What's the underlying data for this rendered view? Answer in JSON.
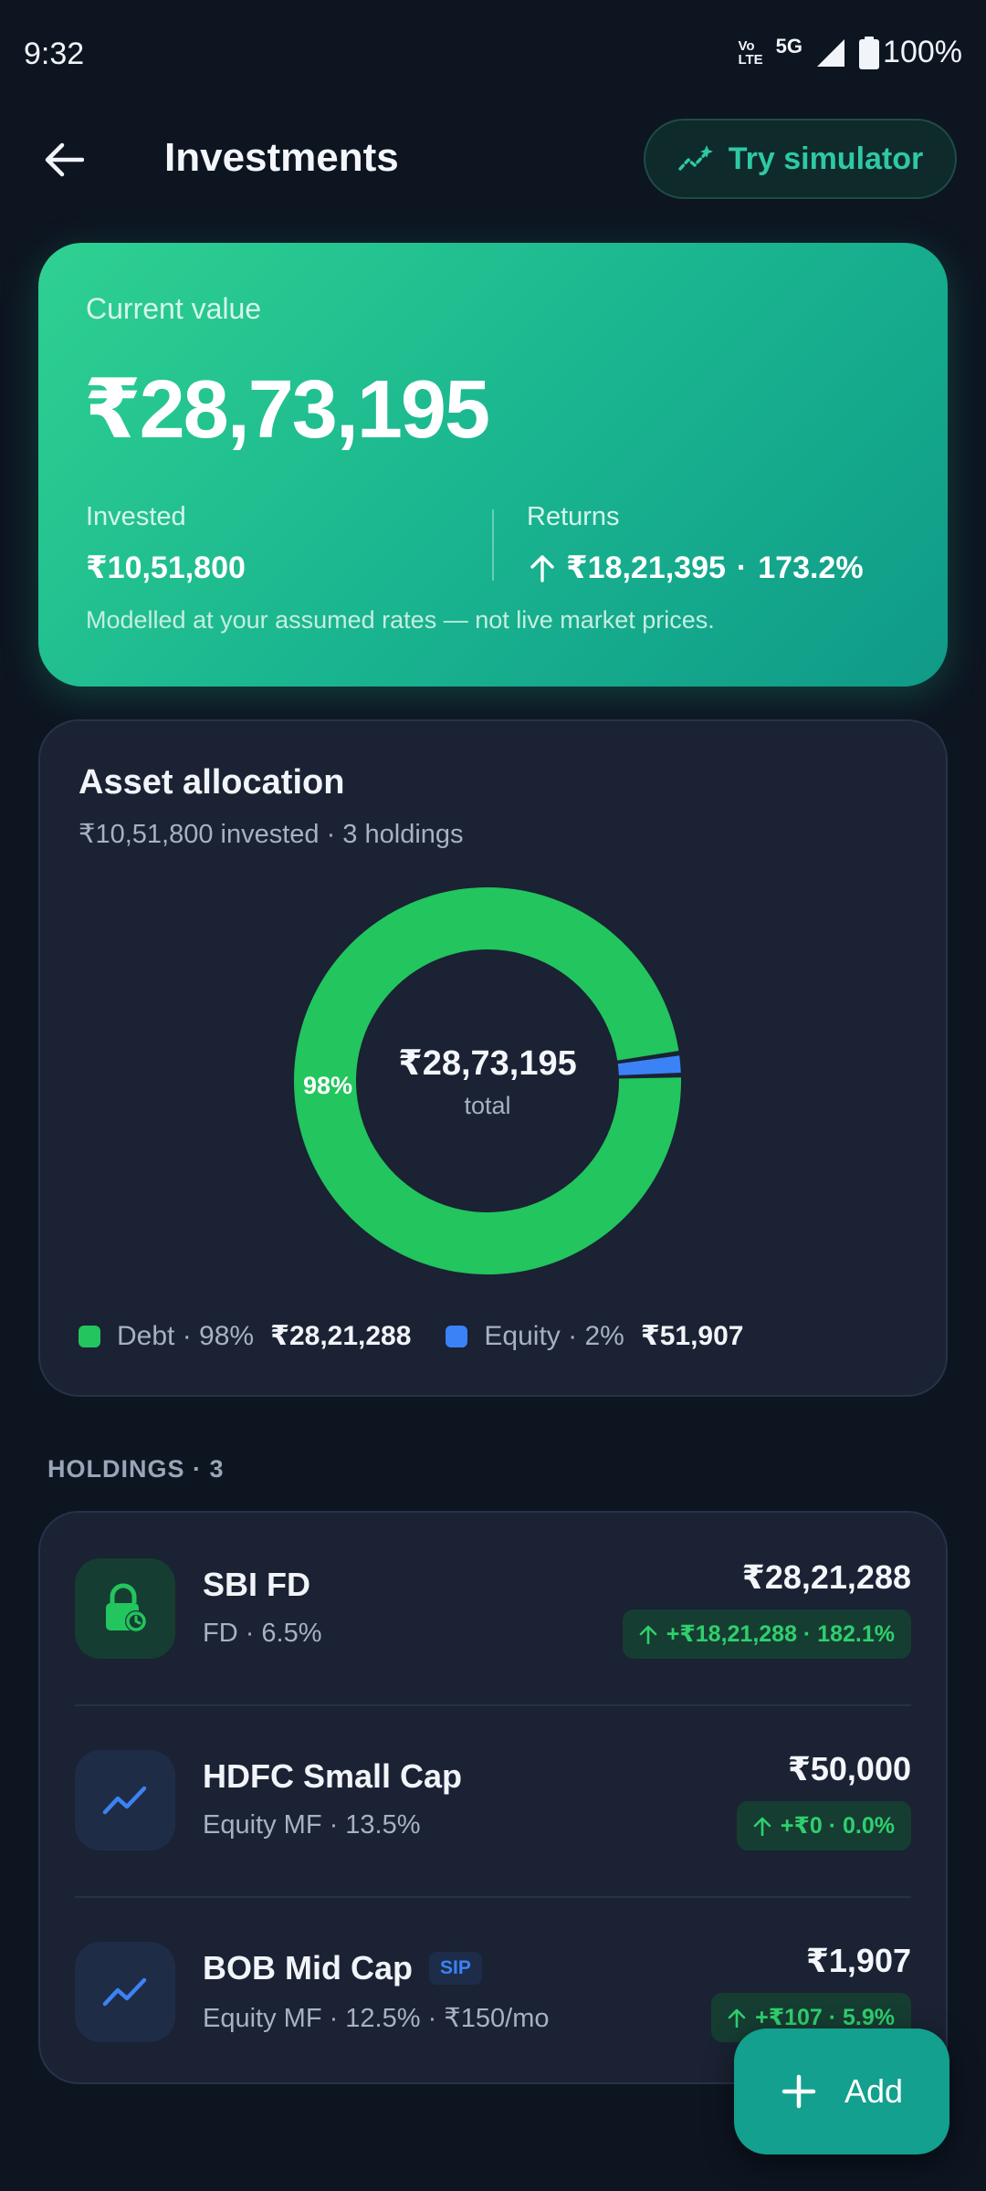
{
  "status": {
    "time": "9:32",
    "network": "5G",
    "volte_top": "Vo",
    "volte_bottom": "LTE",
    "battery": "100%"
  },
  "header": {
    "title": "Investments",
    "simulator_label": "Try simulator"
  },
  "summary": {
    "current_value_label": "Current value",
    "current_value": "₹28,73,195",
    "invested_label": "Invested",
    "invested_value": "₹10,51,800",
    "returns_label": "Returns",
    "returns_value": "₹18,21,395",
    "returns_separator": "·",
    "returns_percent": "173.2%",
    "note": "Modelled at your assumed rates — not live market prices."
  },
  "allocation": {
    "title": "Asset allocation",
    "subtitle": "₹10,51,800 invested · 3 holdings",
    "center_value": "₹28,73,195",
    "center_label": "total",
    "slice_label": "98%",
    "legend": [
      {
        "label": "Debt · 98%",
        "amount": "₹28,21,288",
        "color": "#22c55e"
      },
      {
        "label": "Equity · 2%",
        "amount": "₹51,907",
        "color": "#3b82f6"
      }
    ]
  },
  "chart_data": {
    "type": "pie",
    "categories": [
      "Debt",
      "Equity"
    ],
    "values": [
      2821288,
      51907
    ],
    "percent_labels": [
      "98%",
      "2%"
    ],
    "colors": [
      "#22c55e",
      "#3b82f6"
    ]
  },
  "holdings": {
    "header": "HOLDINGS · 3",
    "items": [
      {
        "name": "SBI FD",
        "sub": "FD · 6.5%",
        "value": "₹28,21,288",
        "change": "+₹18,21,288 · 182.1%",
        "icon": "lock-clock-icon",
        "tag": ""
      },
      {
        "name": "HDFC Small Cap",
        "sub": "Equity MF · 13.5%",
        "value": "₹50,000",
        "change": "+₹0 · 0.0%",
        "icon": "trending-up-icon",
        "tag": ""
      },
      {
        "name": "BOB Mid Cap",
        "sub": "Equity MF · 12.5% · ₹150/mo",
        "value": "₹1,907",
        "change": "+₹107 · 5.9%",
        "icon": "trending-up-icon",
        "tag": "SIP"
      }
    ]
  },
  "fab": {
    "label": "Add"
  }
}
